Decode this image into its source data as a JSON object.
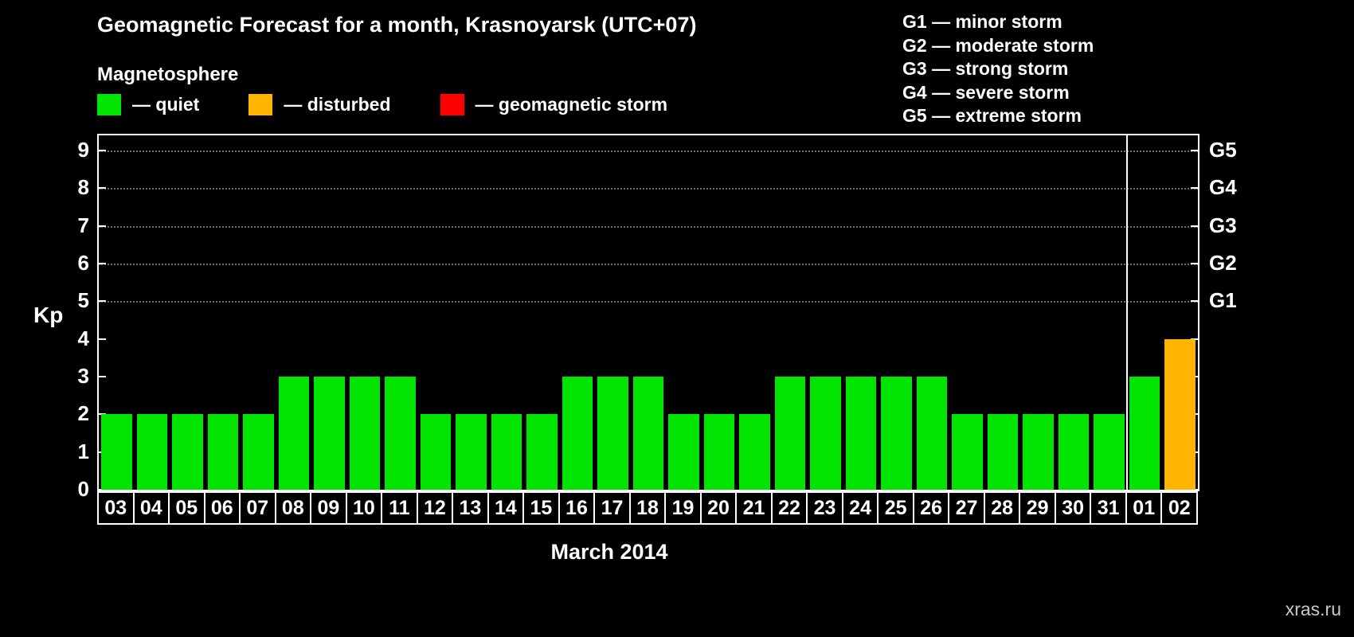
{
  "header": {
    "title": "Geomagnetic Forecast for a month, Krasnoyarsk (UTC+07)",
    "subtitle": "Magnetosphere"
  },
  "legend": {
    "items": [
      {
        "name": "quiet",
        "label": "— quiet",
        "color": "#00e400"
      },
      {
        "name": "disturbed",
        "label": "— disturbed",
        "color": "#ffb400"
      },
      {
        "name": "storm",
        "label": "— geomagnetic storm",
        "color": "#ff0000"
      }
    ]
  },
  "g_scale_legend": {
    "lines": [
      "G1 — minor storm",
      "G2 — moderate storm",
      "G3 — strong storm",
      "G4 — severe storm",
      "G5 — extreme storm"
    ]
  },
  "watermark": "xras.ru",
  "chart_data": {
    "type": "bar",
    "title": "Geomagnetic Forecast for a month, Krasnoyarsk (UTC+07)",
    "xlabel": "March 2014",
    "ylabel": "Kp",
    "ylim": [
      0,
      9
    ],
    "y_ticks": [
      0,
      1,
      2,
      3,
      4,
      5,
      6,
      7,
      8,
      9
    ],
    "grid": "dotted horizontal lines at G-storm levels (Kp 5-9)",
    "legend_position": "top-left",
    "categories": [
      "03",
      "04",
      "05",
      "06",
      "07",
      "08",
      "09",
      "10",
      "11",
      "12",
      "13",
      "14",
      "15",
      "16",
      "17",
      "18",
      "19",
      "20",
      "21",
      "22",
      "23",
      "24",
      "25",
      "26",
      "27",
      "28",
      "29",
      "30",
      "31",
      "01",
      "02"
    ],
    "values": [
      2,
      2,
      2,
      2,
      2,
      3,
      3,
      3,
      3,
      2,
      2,
      2,
      2,
      3,
      3,
      3,
      2,
      2,
      2,
      3,
      3,
      3,
      3,
      3,
      2,
      2,
      2,
      2,
      2,
      3,
      4
    ],
    "statuses": [
      "quiet",
      "quiet",
      "quiet",
      "quiet",
      "quiet",
      "quiet",
      "quiet",
      "quiet",
      "quiet",
      "quiet",
      "quiet",
      "quiet",
      "quiet",
      "quiet",
      "quiet",
      "quiet",
      "quiet",
      "quiet",
      "quiet",
      "quiet",
      "quiet",
      "quiet",
      "quiet",
      "quiet",
      "quiet",
      "quiet",
      "quiet",
      "quiet",
      "quiet",
      "quiet",
      "disturbed"
    ],
    "status_colors": {
      "quiet": "#00e400",
      "disturbed": "#ffb400",
      "storm": "#ff0000"
    },
    "right_axis": [
      {
        "label": "G1",
        "kp": 5
      },
      {
        "label": "G2",
        "kp": 6
      },
      {
        "label": "G3",
        "kp": 7
      },
      {
        "label": "G4",
        "kp": 8
      },
      {
        "label": "G5",
        "kp": 9
      }
    ],
    "month_separator_after_index": 28
  }
}
